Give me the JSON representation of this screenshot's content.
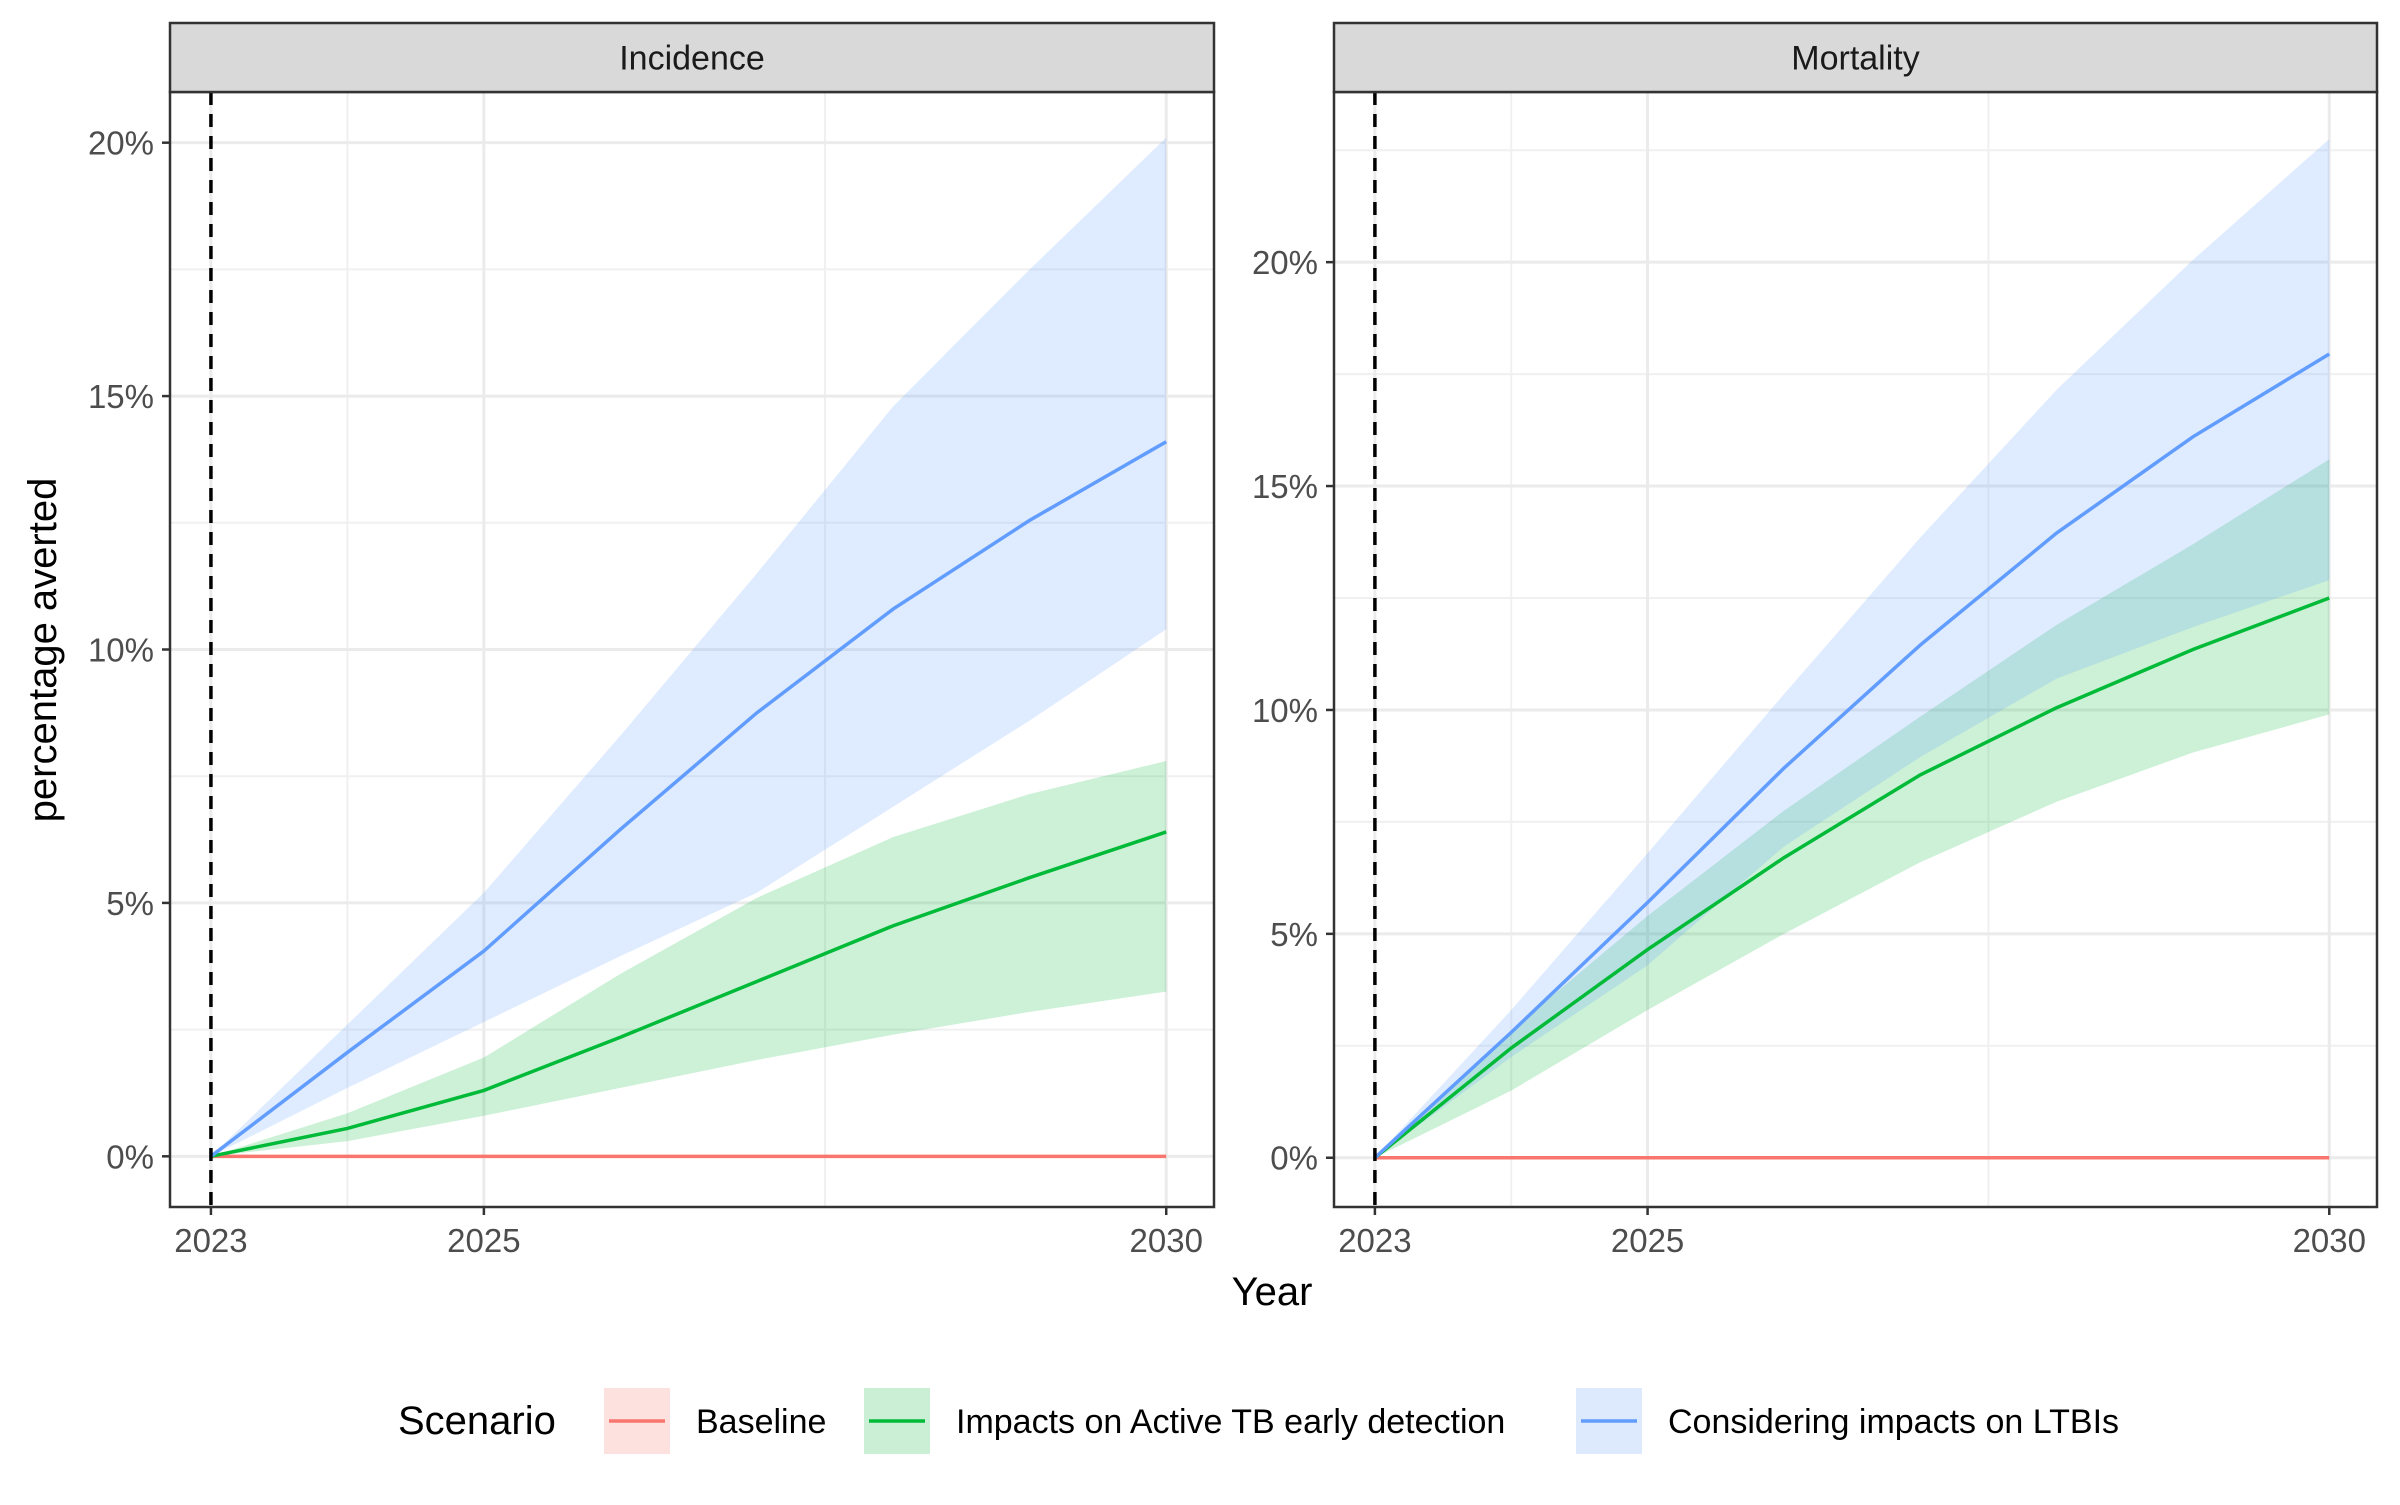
{
  "chart_data": {
    "type": "line",
    "xlabel": "Year",
    "ylabel": "percentage averted",
    "x_ticks": [
      2023,
      2025,
      2030
    ],
    "x_range": [
      2022.7,
      2030.35
    ],
    "intervention_marker_year": 2023,
    "grid": true,
    "legend": {
      "title": "Scenario",
      "position": "bottom",
      "entries": [
        {
          "name": "Baseline",
          "line_color": "#F8766D",
          "fill_color": "#FDE1DF"
        },
        {
          "name": "Impacts on Active TB early detection",
          "line_color": "#00BA38",
          "fill_color": "#CBEFD5"
        },
        {
          "name": "Considering impacts on LTBIs",
          "line_color": "#619CFF",
          "fill_color": "#DDE9FD"
        }
      ]
    },
    "panels": [
      {
        "title": "Incidence",
        "x": [
          2023,
          2024,
          2025,
          2026,
          2027,
          2028,
          2029,
          2030
        ],
        "ylim": [
          -1,
          21
        ],
        "y_ticks": [
          0,
          5,
          10,
          15,
          20
        ],
        "y_tick_labels": [
          "0%",
          "5%",
          "10%",
          "15%",
          "20%"
        ],
        "series": [
          {
            "name": "Baseline",
            "color": "#F8766D",
            "fill": "#FDE1DF",
            "values": [
              0,
              0,
              0,
              0,
              0,
              0,
              0,
              0
            ],
            "lower": [
              0,
              0,
              0,
              0,
              0,
              0,
              0,
              0
            ],
            "upper": [
              0,
              0,
              0,
              0,
              0,
              0,
              0,
              0
            ]
          },
          {
            "name": "Impacts on Active TB early detection",
            "color": "#00BA38",
            "fill": "#CBEFD5",
            "values": [
              0,
              0.55,
              1.3,
              2.35,
              3.45,
              4.55,
              5.5,
              6.4
            ],
            "lower": [
              0,
              0.3,
              0.8,
              1.35,
              1.9,
              2.4,
              2.85,
              3.25
            ],
            "upper": [
              0,
              0.85,
              1.95,
              3.6,
              5.1,
              6.3,
              7.15,
              7.8
            ]
          },
          {
            "name": "Considering impacts on LTBIs",
            "color": "#619CFF",
            "fill": "#DDE9FD",
            "values": [
              0,
              2.05,
              4.05,
              6.45,
              8.75,
              10.8,
              12.55,
              14.1
            ],
            "lower": [
              0,
              1.35,
              2.65,
              3.95,
              5.2,
              6.9,
              8.6,
              10.4
            ],
            "upper": [
              0,
              2.6,
              5.2,
              8.3,
              11.5,
              14.8,
              17.5,
              20.1
            ]
          }
        ]
      },
      {
        "title": "Mortality",
        "x": [
          2023,
          2024,
          2025,
          2026,
          2027,
          2028,
          2029,
          2030
        ],
        "ylim": [
          -1.1,
          23.8
        ],
        "y_ticks": [
          0,
          5,
          10,
          15,
          20
        ],
        "y_tick_labels": [
          "0%",
          "5%",
          "10%",
          "15%",
          "20%"
        ],
        "series": [
          {
            "name": "Baseline",
            "color": "#F8766D",
            "fill": "#FDE1DF",
            "values": [
              0,
              0,
              0,
              0,
              0,
              0,
              0,
              0
            ],
            "lower": [
              0,
              0,
              0,
              0,
              0,
              0,
              0,
              0
            ],
            "upper": [
              0,
              0,
              0,
              0,
              0,
              0,
              0,
              0
            ]
          },
          {
            "name": "Impacts on Active TB early detection",
            "color": "#00BA38",
            "fill": "#CBEFD5",
            "values": [
              0,
              2.45,
              4.65,
              6.7,
              8.55,
              10.05,
              11.35,
              12.5
            ],
            "lower": [
              0,
              1.5,
              3.3,
              5.0,
              6.6,
              7.95,
              9.05,
              9.9
            ],
            "upper": [
              0,
              2.85,
              5.4,
              7.75,
              9.85,
              11.9,
              13.7,
              15.6
            ]
          },
          {
            "name": "Considering impacts on LTBIs",
            "color": "#619CFF",
            "fill": "#DDE9FD",
            "values": [
              0,
              2.8,
              5.7,
              8.7,
              11.45,
              13.95,
              16.1,
              17.95
            ],
            "lower": [
              0,
              2.25,
              4.3,
              6.95,
              8.95,
              10.7,
              11.85,
              12.9
            ],
            "upper": [
              0,
              3.3,
              6.8,
              10.35,
              13.85,
              17.15,
              20.05,
              22.75
            ]
          }
        ]
      }
    ]
  }
}
